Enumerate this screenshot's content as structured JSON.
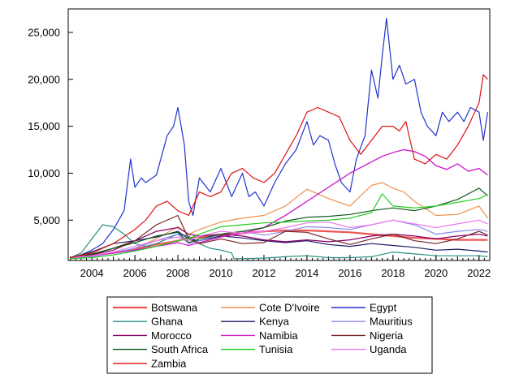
{
  "chart_data": {
    "type": "line",
    "title": "",
    "xlabel": "",
    "ylabel": "",
    "xlim": [
      2002.9,
      2022.5
    ],
    "ylim": [
      700,
      27500
    ],
    "x_ticks": [
      2004,
      2006,
      2008,
      2010,
      2012,
      2014,
      2016,
      2018,
      2020,
      2022
    ],
    "x_tick_labels": [
      "2004",
      "2006",
      "2008",
      "2010",
      "2012",
      "2014",
      "2016",
      "2018",
      "2020",
      "2022"
    ],
    "y_ticks": [
      5000,
      10000,
      15000,
      20000,
      25000
    ],
    "y_tick_labels": [
      "5,000",
      "10,000",
      "15,000",
      "20,000",
      "25,000"
    ],
    "legend_position": "bottom",
    "series": [
      {
        "name": "Botswana",
        "color": "#ee5555",
        "width": 2.2,
        "x": [
          2003,
          2004,
          2005,
          2006,
          2007,
          2008,
          2008.5,
          2009,
          2010,
          2011,
          2012,
          2013,
          2014,
          2015,
          2016,
          2017,
          2018,
          2019,
          2020,
          2021,
          2022,
          2022.4
        ],
        "y": [
          1000,
          1200,
          1500,
          1900,
          2400,
          2800,
          3100,
          3200,
          3400,
          3600,
          3800,
          3900,
          3900,
          3800,
          3700,
          3500,
          3300,
          3100,
          3000,
          2900,
          2900,
          2900
        ]
      },
      {
        "name": "Cote D'Ivoire",
        "color": "#f0904a",
        "width": 1.2,
        "x": [
          2003,
          2004,
          2005,
          2006,
          2007,
          2008,
          2008.5,
          2009,
          2010,
          2011,
          2012,
          2013,
          2014,
          2014.5,
          2015,
          2016,
          2017,
          2017.5,
          2018,
          2018.5,
          2019,
          2020,
          2021,
          2022,
          2022.4
        ],
        "y": [
          1000,
          1200,
          1500,
          2000,
          3000,
          4300,
          3500,
          4000,
          4800,
          5200,
          5500,
          6500,
          8300,
          7800,
          7300,
          6500,
          8700,
          9000,
          8400,
          8000,
          7000,
          5500,
          5600,
          6500,
          5200
        ]
      },
      {
        "name": "Egypt",
        "color": "#2233cc",
        "width": 1.2,
        "x": [
          2003,
          2003.5,
          2004,
          2004.5,
          2005,
          2005.5,
          2005.8,
          2006,
          2006.3,
          2006.5,
          2007,
          2007.5,
          2007.8,
          2008,
          2008.3,
          2008.5,
          2008.7,
          2009,
          2009.5,
          2010,
          2010.5,
          2011,
          2011.3,
          2011.6,
          2012,
          2012.5,
          2013,
          2013.5,
          2014,
          2014.3,
          2014.6,
          2015,
          2015.3,
          2015.6,
          2016,
          2016.3,
          2016.7,
          2017,
          2017.3,
          2017.5,
          2017.7,
          2018,
          2018.3,
          2018.6,
          2019,
          2019.3,
          2019.6,
          2020,
          2020.3,
          2020.6,
          2021,
          2021.3,
          2021.6,
          2022,
          2022.2,
          2022.4
        ],
        "y": [
          900,
          1300,
          1800,
          2500,
          4000,
          6000,
          11500,
          8500,
          9500,
          9000,
          9800,
          14000,
          15000,
          17000,
          13000,
          7000,
          5500,
          9500,
          8000,
          10500,
          7500,
          10000,
          7500,
          8000,
          6500,
          9000,
          11000,
          12500,
          15500,
          13000,
          14000,
          13500,
          11000,
          9000,
          8000,
          11500,
          14000,
          21000,
          18000,
          22500,
          26500,
          20000,
          21500,
          19500,
          20000,
          16500,
          15000,
          14000,
          16500,
          15500,
          16500,
          15500,
          17000,
          16500,
          13500,
          16500
        ]
      },
      {
        "name": "Ghana",
        "color": "#2a8f80",
        "width": 1.2,
        "x": [
          2003,
          2003.5,
          2004,
          2004.5,
          2005,
          2005.5,
          2006,
          2006.5,
          2007,
          2007.5,
          2008,
          2008.5,
          2009,
          2009.5,
          2010,
          2010.5,
          2010.6,
          2011,
          2012,
          2013,
          2014,
          2015,
          2016,
          2017,
          2018,
          2019,
          2020,
          2021,
          2022,
          2022.4
        ],
        "y": [
          1000,
          1500,
          3000,
          4500,
          4300,
          3500,
          2500,
          2200,
          2500,
          3000,
          3500,
          3300,
          2500,
          2000,
          1800,
          1500,
          900,
          900,
          950,
          1100,
          1200,
          1000,
          1000,
          1100,
          1600,
          1400,
          1200,
          1200,
          1200,
          1100
        ]
      },
      {
        "name": "Kenya",
        "color": "#1a1a66",
        "width": 1.2,
        "x": [
          2003,
          2004,
          2005,
          2006,
          2007,
          2008,
          2008.5,
          2009,
          2010,
          2011,
          2012,
          2013,
          2014,
          2015,
          2016,
          2017,
          2018,
          2019,
          2020,
          2021,
          2022,
          2022.4
        ],
        "y": [
          1000,
          1600,
          2500,
          2800,
          3200,
          3800,
          3000,
          2800,
          3300,
          3100,
          2800,
          2600,
          2800,
          2400,
          2200,
          2500,
          2300,
          2100,
          1800,
          1900,
          1700,
          1600
        ]
      },
      {
        "name": "Mauritius",
        "color": "#8888ee",
        "width": 1.2,
        "x": [
          2003,
          2004,
          2005,
          2006,
          2007,
          2008,
          2008.5,
          2009,
          2010,
          2011,
          2012,
          2013,
          2014,
          2015,
          2016,
          2017,
          2018,
          2019,
          2020,
          2021,
          2022,
          2022.4
        ],
        "y": [
          900,
          1100,
          1500,
          2000,
          2800,
          3500,
          2500,
          2800,
          3500,
          3800,
          3400,
          3800,
          4300,
          4200,
          4000,
          4500,
          5000,
          4500,
          3500,
          3800,
          4000,
          3800
        ]
      },
      {
        "name": "Morocco",
        "color": "#880066",
        "width": 1.2,
        "x": [
          2003,
          2004,
          2005,
          2006,
          2007,
          2008,
          2008.5,
          2009,
          2010,
          2011,
          2012,
          2013,
          2014,
          2015,
          2016,
          2017,
          2018,
          2019,
          2020,
          2021,
          2022,
          2022.4
        ],
        "y": [
          1000,
          1300,
          1800,
          2800,
          3800,
          4200,
          3500,
          3300,
          3500,
          3300,
          2900,
          2700,
          2900,
          2700,
          2900,
          3300,
          3500,
          3300,
          3000,
          3300,
          3500,
          3300
        ]
      },
      {
        "name": "Namibia",
        "color": "#cc22cc",
        "width": 1.4,
        "x": [
          2003,
          2004,
          2005,
          2006,
          2007,
          2008,
          2008.5,
          2009,
          2010,
          2011,
          2012,
          2013,
          2014,
          2015,
          2016,
          2017,
          2017.5,
          2018,
          2018.5,
          2019,
          2019.5,
          2020,
          2020.5,
          2021,
          2021.5,
          2022,
          2022.4
        ],
        "y": [
          1000,
          1200,
          1500,
          1800,
          2200,
          2600,
          2300,
          2600,
          3200,
          3600,
          4200,
          5500,
          7000,
          8500,
          10000,
          11200,
          11800,
          12200,
          12500,
          12300,
          11800,
          10800,
          10400,
          11000,
          10200,
          10500,
          9800
        ]
      },
      {
        "name": "Nigeria",
        "color": "#772222",
        "width": 1.2,
        "x": [
          2003,
          2004,
          2005,
          2006,
          2007,
          2008,
          2008.5,
          2009,
          2010,
          2011,
          2012,
          2013,
          2014,
          2015,
          2016,
          2017,
          2018,
          2019,
          2020,
          2021,
          2022,
          2022.4
        ],
        "y": [
          1000,
          1300,
          2000,
          2800,
          4500,
          5500,
          3000,
          2500,
          3000,
          2500,
          2600,
          3800,
          3700,
          3000,
          2400,
          3000,
          3500,
          2800,
          2500,
          3000,
          3800,
          3400
        ]
      },
      {
        "name": "South Africa",
        "color": "#0f5a1a",
        "width": 1.2,
        "x": [
          2003,
          2004,
          2005,
          2006,
          2007,
          2008,
          2008.5,
          2009,
          2010,
          2011,
          2012,
          2013,
          2014,
          2015,
          2016,
          2017,
          2018,
          2019,
          2020,
          2021,
          2022,
          2022.4
        ],
        "y": [
          1000,
          1400,
          2000,
          2600,
          3300,
          3700,
          2600,
          3000,
          3500,
          3800,
          4200,
          4900,
          5300,
          5400,
          5600,
          6000,
          6300,
          6000,
          6500,
          7200,
          8400,
          7600
        ]
      },
      {
        "name": "Tunisia",
        "color": "#22cc22",
        "width": 1.2,
        "x": [
          2003,
          2004,
          2005,
          2006,
          2007,
          2008,
          2008.5,
          2009,
          2010,
          2011,
          2012,
          2013,
          2014,
          2015,
          2016,
          2017,
          2017.5,
          2018,
          2019,
          2020,
          2021,
          2022,
          2022.4
        ],
        "y": [
          900,
          1000,
          1300,
          1700,
          2200,
          2800,
          3000,
          3500,
          4300,
          4500,
          4700,
          4800,
          4900,
          5000,
          5200,
          5800,
          7800,
          6500,
          6300,
          6500,
          6900,
          7300,
          7700
        ]
      },
      {
        "name": "Uganda",
        "color": "#ee77ee",
        "width": 1.2,
        "x": [
          2003,
          2004,
          2005,
          2006,
          2007,
          2008,
          2008.5,
          2009,
          2010,
          2011,
          2012,
          2013,
          2014,
          2015,
          2016,
          2017,
          2018,
          2019,
          2020,
          2021,
          2022,
          2022.4
        ],
        "y": [
          1000,
          1200,
          1600,
          2200,
          2800,
          3200,
          2800,
          3300,
          3800,
          3600,
          3800,
          4200,
          4700,
          4800,
          4200,
          4500,
          5000,
          4600,
          4200,
          4600,
          5000,
          4600
        ]
      },
      {
        "name": "Zambia",
        "color": "#dd1111",
        "width": 1.2,
        "x": [
          2003,
          2004,
          2005,
          2006,
          2006.5,
          2007,
          2007.5,
          2008,
          2008.5,
          2009,
          2009.5,
          2010,
          2010.5,
          2011,
          2011.5,
          2012,
          2012.5,
          2013,
          2013.5,
          2014,
          2014.5,
          2015,
          2015.5,
          2016,
          2016.5,
          2017,
          2017.5,
          2018,
          2018.3,
          2018.6,
          2019,
          2019.5,
          2020,
          2020.5,
          2021,
          2021.5,
          2022,
          2022.2,
          2022.4
        ],
        "y": [
          1000,
          1500,
          2500,
          4000,
          5000,
          6500,
          7000,
          6000,
          5500,
          8000,
          7500,
          8000,
          10000,
          10500,
          9500,
          9000,
          10000,
          12000,
          14000,
          16500,
          17000,
          16500,
          16000,
          13500,
          12000,
          13500,
          15000,
          15000,
          14500,
          15500,
          11500,
          11000,
          12000,
          11500,
          13000,
          15000,
          17500,
          20500,
          20000
        ]
      }
    ]
  }
}
